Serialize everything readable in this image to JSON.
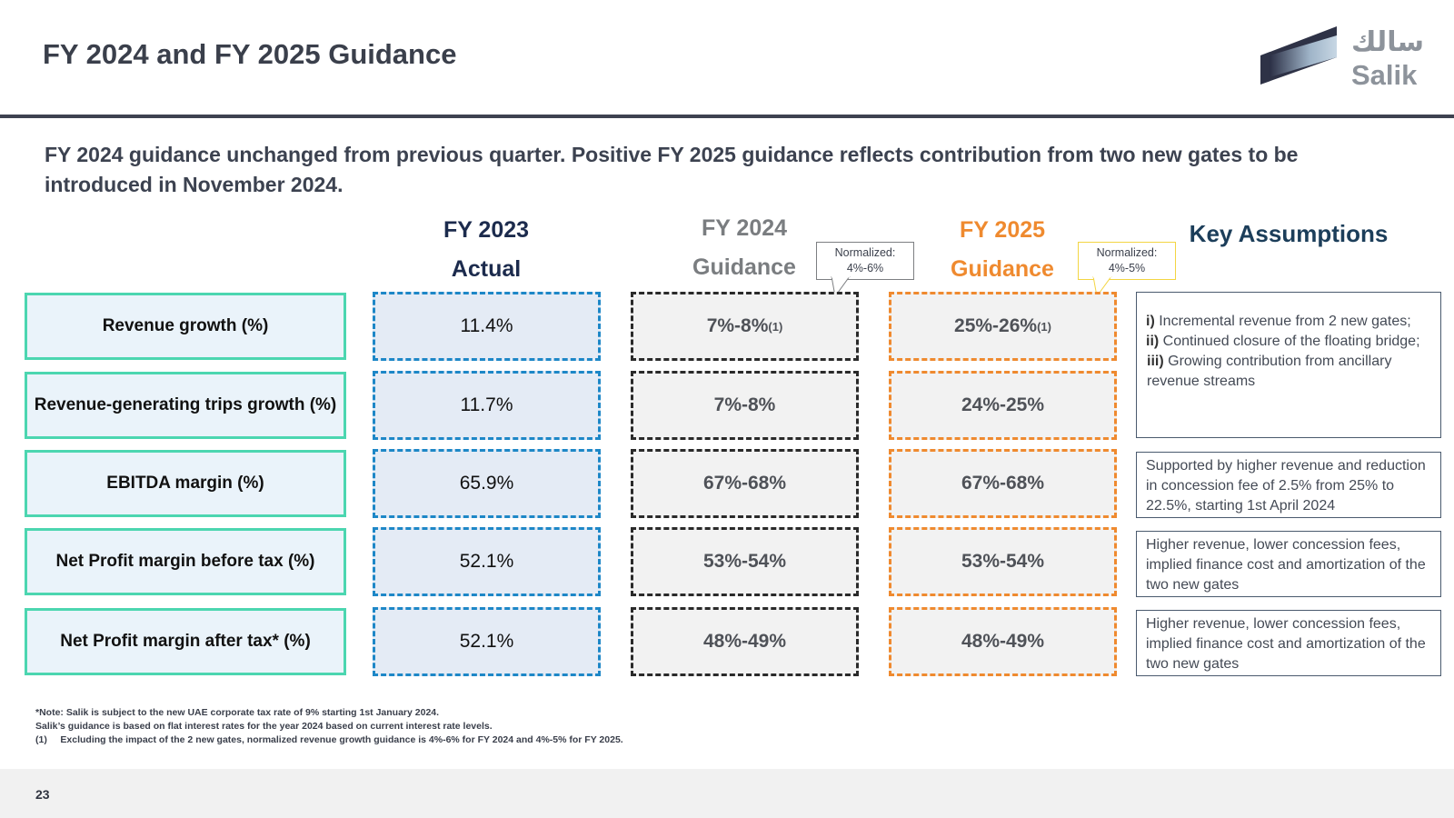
{
  "title": "FY 2024 and FY 2025 Guidance",
  "logo": {
    "arabic": "سالك",
    "english": "Salik"
  },
  "subtitle": "FY 2024 guidance unchanged from previous quarter. Positive FY 2025 guidance reflects contribution from two new gates to be introduced in November 2024.",
  "columns": {
    "fy2023": {
      "line1": "FY 2023",
      "line2": "Actual"
    },
    "fy2024": {
      "line1": "FY 2024",
      "line2": "Guidance"
    },
    "fy2025": {
      "line1": "FY 2025",
      "line2": "Guidance"
    },
    "key_assumptions": "Key Assumptions"
  },
  "callouts": {
    "fy2024": {
      "line1": "Normalized:",
      "line2": "4%-6%"
    },
    "fy2025": {
      "line1": "Normalized:",
      "line2": "4%-5%"
    }
  },
  "rows": [
    {
      "label": "Revenue growth (%)",
      "fy2023": "11.4%",
      "fy2024": "7%-8%",
      "fy2024_sup": "(1)",
      "fy2025": "25%-26%",
      "fy2025_sup": "(1)"
    },
    {
      "label": "Revenue-generating trips growth (%)",
      "fy2023": "11.7%",
      "fy2024": "7%-8%",
      "fy2025": "24%-25%"
    },
    {
      "label": "EBITDA margin (%)",
      "fy2023": "65.9%",
      "fy2024": "67%-68%",
      "fy2025": "67%-68%"
    },
    {
      "label": "Net Profit margin before tax (%)",
      "fy2023": "52.1%",
      "fy2024": "53%-54%",
      "fy2025": "53%-54%"
    },
    {
      "label": "Net Profit margin after tax* (%)",
      "fy2023": "52.1%",
      "fy2024": "48%-49%",
      "fy2025": "48%-49%"
    }
  ],
  "assumptions": {
    "revenue": [
      {
        "num": "i)",
        "text": " Incremental revenue from 2 new gates;"
      },
      {
        "num": "ii)",
        "text": " Continued closure of the floating bridge;"
      },
      {
        "num": "iii)",
        "text": " Growing contribution from ancillary revenue streams"
      }
    ],
    "ebitda": "Supported by higher revenue and reduction in concession fee of 2.5% from 25% to 22.5%, starting 1st April 2024",
    "npbt": "Higher revenue, lower concession fees, implied finance cost and amortization of the two new gates",
    "npat": "Higher revenue, lower concession fees, implied finance cost and amortization of the two new gates"
  },
  "notes": [
    "*Note: Salik is subject to the new UAE corporate tax rate of 9% starting 1st January 2024.",
    "Salik’s guidance is based on flat interest rates for the year 2024 based on current interest rate levels.",
    "(1)     Excluding the impact of the 2 new gates, normalized revenue growth guidance is 4%-6% for FY 2024 and 4%-5% for FY 2025."
  ],
  "page_number": "23",
  "colors": {
    "teal": "#4cd6b0",
    "blue": "#1d87c7",
    "orange": "#ef8a2f",
    "navy": "#1c2b4d"
  }
}
